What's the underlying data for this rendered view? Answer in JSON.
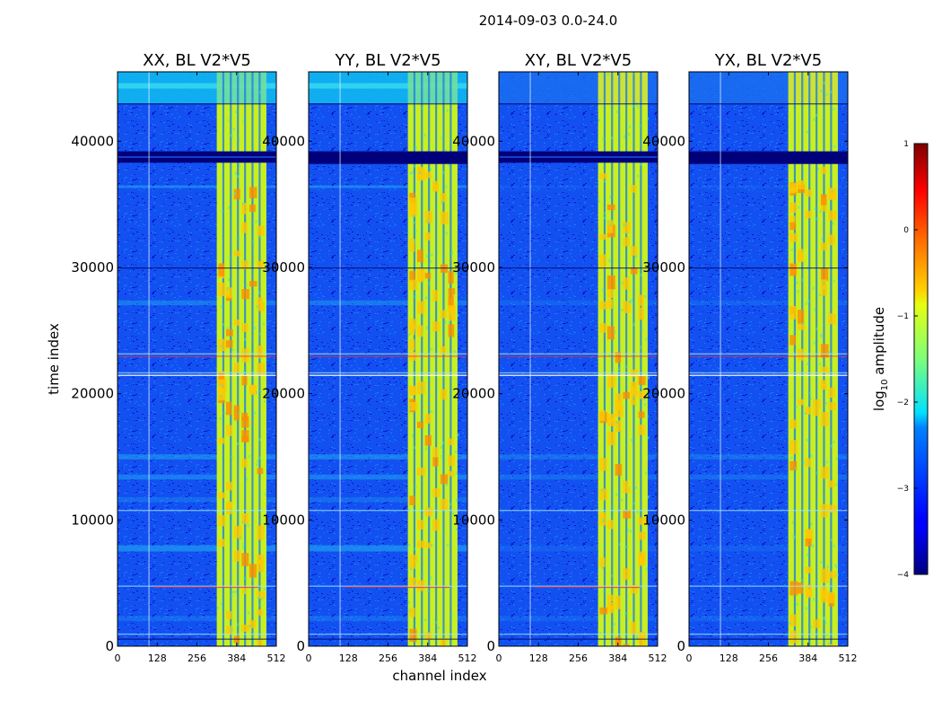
{
  "chart_data": {
    "type": "heatmap",
    "suptitle": "2014-09-03 0.0-24.0",
    "xlabel": "channel index",
    "ylabel": "time index",
    "xlim": [
      0,
      512
    ],
    "ylim": [
      0,
      45500
    ],
    "x_ticks": [
      0,
      128,
      256,
      384,
      512
    ],
    "x_tick_labels": [
      "0",
      "128",
      "256",
      "384",
      "512"
    ],
    "y_ticks": [
      0,
      10000,
      20000,
      30000,
      40000
    ],
    "y_tick_labels": [
      "0",
      "10000",
      "20000",
      "30000",
      "40000"
    ],
    "panels": [
      {
        "title": "XX, BL V2*V5",
        "pol": "XX"
      },
      {
        "title": "YY, BL V2*V5",
        "pol": "YY"
      },
      {
        "title": "XY, BL V2*V5",
        "pol": "XY"
      },
      {
        "title": "YX, BL V2*V5",
        "pol": "YX"
      }
    ],
    "colorbar": {
      "label_prefix": "log",
      "label_sub": "10",
      "label_suffix": " amplitude",
      "range": [
        -4,
        1
      ],
      "ticks": [
        1,
        0,
        -1,
        -2,
        -3,
        -4
      ],
      "tick_labels": [
        "1",
        "0",
        "−1",
        "−2",
        "−3",
        "−4"
      ],
      "colormap": "jet"
    }
  }
}
